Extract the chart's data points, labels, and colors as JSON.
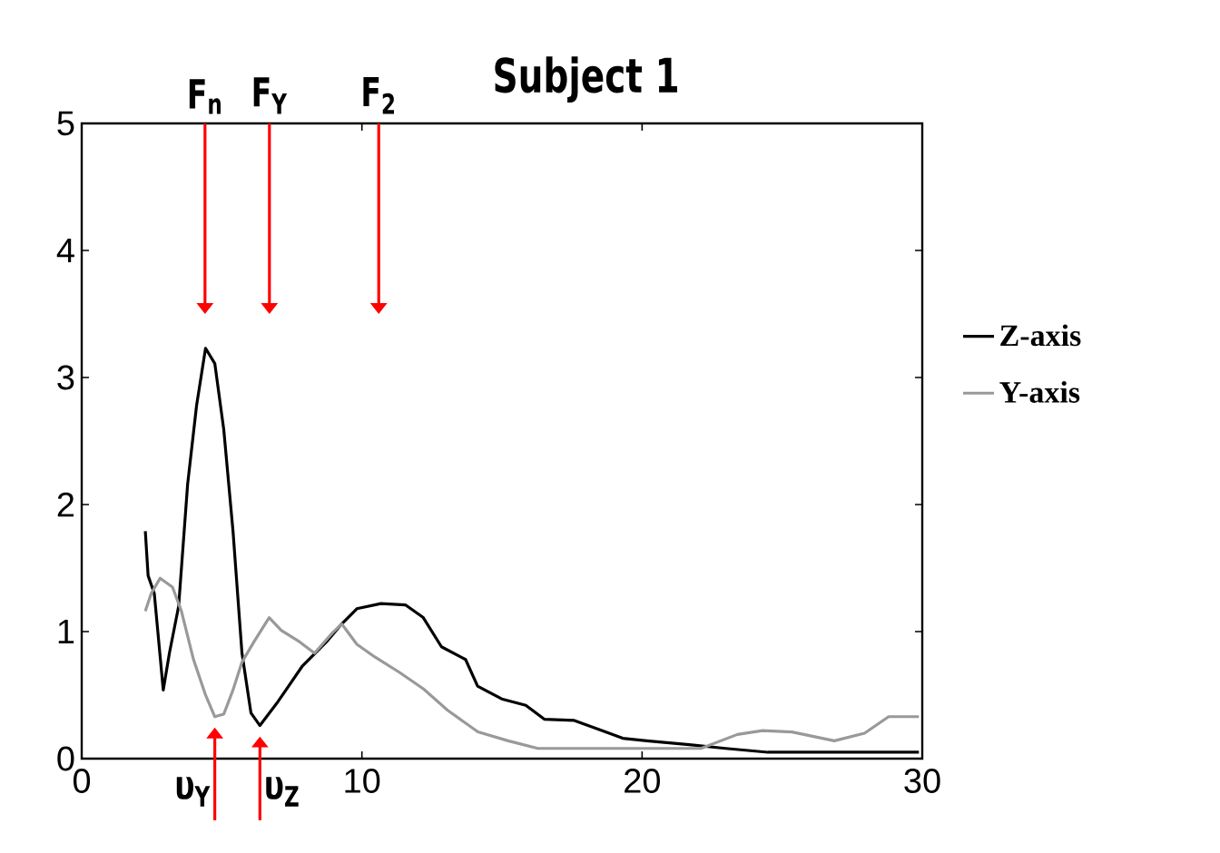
{
  "chart_data": {
    "type": "line",
    "title": "Subject 1",
    "xlim": [
      0,
      30
    ],
    "ylim": [
      0,
      5
    ],
    "xticks": [
      0,
      10,
      20,
      30
    ],
    "yticks": [
      0,
      1,
      2,
      3,
      4,
      5
    ],
    "grid": false,
    "legend": "right",
    "marker": "none",
    "line_style": "solid",
    "series": [
      {
        "name": "Z-axis",
        "color": "#000000",
        "x": [
          2.27,
          2.37,
          2.59,
          2.91,
          3.13,
          3.46,
          3.78,
          4.1,
          4.42,
          4.75,
          5.07,
          5.4,
          5.72,
          6.04,
          6.36,
          7.01,
          7.88,
          8.74,
          9.28,
          9.82,
          10.68,
          11.55,
          12.19,
          12.84,
          13.7,
          14.13,
          14.99,
          15.85,
          16.51,
          17.58,
          18.45,
          19.31,
          20.17,
          21.68,
          22.98,
          24.49,
          29.88
        ],
        "values": [
          1.79,
          1.44,
          1.3,
          0.54,
          0.83,
          1.2,
          2.16,
          2.78,
          3.23,
          3.11,
          2.59,
          1.79,
          0.83,
          0.36,
          0.26,
          0.45,
          0.73,
          0.92,
          1.06,
          1.18,
          1.22,
          1.21,
          1.11,
          0.88,
          0.78,
          0.57,
          0.47,
          0.42,
          0.31,
          0.3,
          0.23,
          0.16,
          0.14,
          0.11,
          0.08,
          0.05,
          0.05
        ]
      },
      {
        "name": "Y-axis",
        "color": "#999999",
        "x": [
          2.27,
          2.48,
          2.8,
          3.24,
          3.56,
          3.99,
          4.42,
          4.75,
          5.07,
          5.4,
          5.72,
          6.15,
          6.69,
          7.12,
          7.77,
          8.31,
          8.95,
          9.28,
          9.82,
          10.46,
          11.33,
          12.19,
          13.06,
          14.14,
          15.22,
          16.28,
          19.74,
          22.1,
          23.4,
          24.3,
          25.35,
          26.86,
          27.94,
          28.8,
          29.88
        ],
        "values": [
          1.16,
          1.3,
          1.42,
          1.35,
          1.16,
          0.78,
          0.5,
          0.33,
          0.35,
          0.54,
          0.76,
          0.92,
          1.11,
          1.01,
          0.92,
          0.83,
          0.99,
          1.06,
          0.9,
          0.8,
          0.68,
          0.55,
          0.38,
          0.21,
          0.14,
          0.08,
          0.08,
          0.08,
          0.19,
          0.22,
          0.21,
          0.14,
          0.2,
          0.33,
          0.33
        ]
      }
    ],
    "ref_lines": [
      {
        "axis": "x",
        "value": 4.4,
        "label": "F$_{n}$",
        "color": "#ff0000"
      },
      {
        "axis": "x",
        "value": 6.7,
        "label": "F$_{Y}$",
        "color": "#ff0000"
      },
      {
        "axis": "x",
        "value": 10.6,
        "label": "F$_{2}$",
        "color": "#ff0000"
      }
    ],
    "annotations": [
      {
        "text": "υ$_{Y}$",
        "x": 4.75,
        "y": 0.33
      },
      {
        "text": "υ$_{Z}$",
        "x": 6.36,
        "y": 0.26
      }
    ]
  }
}
